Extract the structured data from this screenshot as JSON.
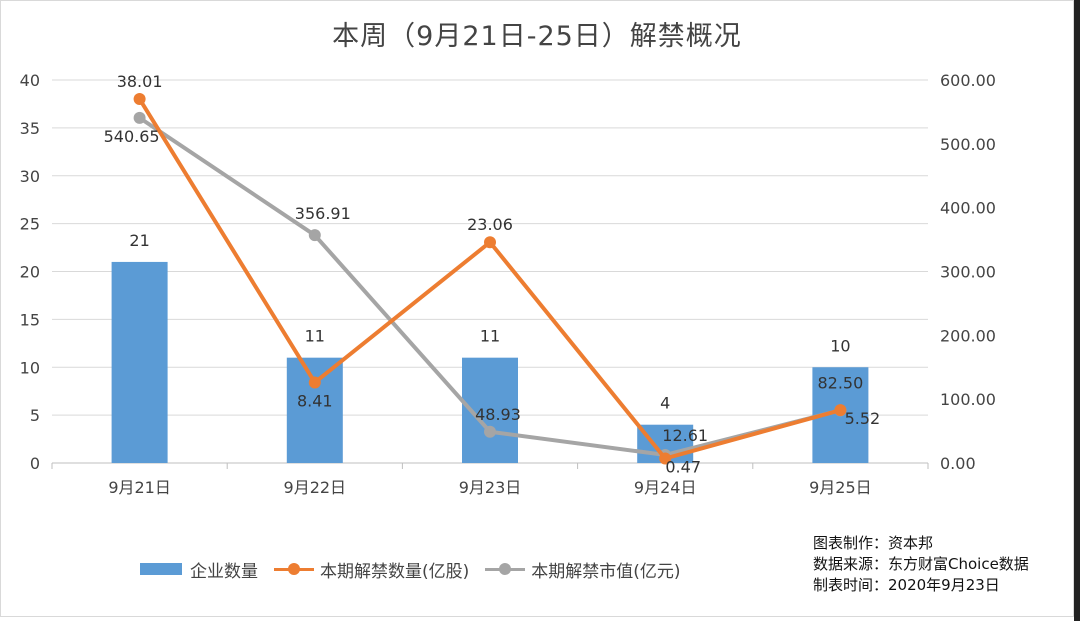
{
  "chart_data": {
    "type": "bar+line",
    "title": "本周（9月21日-25日）解禁概况",
    "categories": [
      "9月21日",
      "9月22日",
      "9月23日",
      "9月24日",
      "9月25日"
    ],
    "left_axis": {
      "ylim": [
        0,
        40
      ],
      "ticks": [
        "0",
        "5",
        "10",
        "15",
        "20",
        "25",
        "30",
        "35",
        "40"
      ]
    },
    "right_axis": {
      "ylim": [
        0,
        600
      ],
      "ticks": [
        "0.00",
        "100.00",
        "200.00",
        "300.00",
        "400.00",
        "500.00",
        "600.00"
      ]
    },
    "series": [
      {
        "name": "企业数量",
        "kind": "bar",
        "axis": "left",
        "color": "#5b9bd5",
        "values": [
          21,
          11,
          11,
          4,
          10
        ],
        "labels": [
          "21",
          "11",
          "11",
          "4",
          "10"
        ]
      },
      {
        "name": "本期解禁数量(亿股)",
        "kind": "line",
        "axis": "left",
        "color": "#ed7d31",
        "values": [
          38.01,
          8.41,
          23.06,
          0.47,
          5.52
        ],
        "labels": [
          "38.01",
          "8.41",
          "23.06",
          "0.47",
          "5.52"
        ]
      },
      {
        "name": "本期解禁市值(亿元)",
        "kind": "line",
        "axis": "right",
        "color": "#a5a5a5",
        "values": [
          540.65,
          356.91,
          48.93,
          12.61,
          82.5
        ],
        "labels": [
          "540.65",
          "356.91",
          "48.93",
          "12.61",
          "82.50"
        ]
      }
    ],
    "grid": true,
    "legend_position": "bottom-left"
  },
  "credits": {
    "line1": "图表制作：资本邦",
    "line2": "数据来源：东方财富Choice数据",
    "line3": "制表时间：2020年9月23日"
  }
}
